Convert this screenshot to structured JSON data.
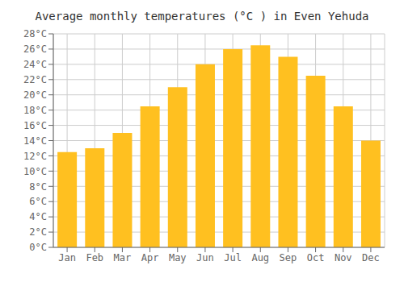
{
  "chart_data": {
    "type": "bar",
    "title": "Average monthly temperatures (°C ) in Even Yehuda",
    "categories": [
      "Jan",
      "Feb",
      "Mar",
      "Apr",
      "May",
      "Jun",
      "Jul",
      "Aug",
      "Sep",
      "Oct",
      "Nov",
      "Dec"
    ],
    "values": [
      12.5,
      13.0,
      15.0,
      18.5,
      21.0,
      24.0,
      26.0,
      26.5,
      25.0,
      22.5,
      18.5,
      14.0
    ],
    "color": "#FFC020",
    "ylim": [
      0,
      28
    ],
    "yticks": [
      {
        "value": 0,
        "label": "0°C"
      },
      {
        "value": 2,
        "label": "2°C"
      },
      {
        "value": 4,
        "label": "4°C"
      },
      {
        "value": 6,
        "label": "6°C"
      },
      {
        "value": 8,
        "label": "8°C"
      },
      {
        "value": 10,
        "label": "10°C"
      },
      {
        "value": 12,
        "label": "12°C"
      },
      {
        "value": 14,
        "label": "14°C"
      },
      {
        "value": 16,
        "label": "16°C"
      },
      {
        "value": 18,
        "label": "18°C"
      },
      {
        "value": 20,
        "label": "20°C"
      },
      {
        "value": 22,
        "label": "22°C"
      },
      {
        "value": 24,
        "label": "24°C"
      },
      {
        "value": 26,
        "label": "26°C"
      },
      {
        "value": 28,
        "label": "28°C"
      }
    ],
    "grid": true
  }
}
